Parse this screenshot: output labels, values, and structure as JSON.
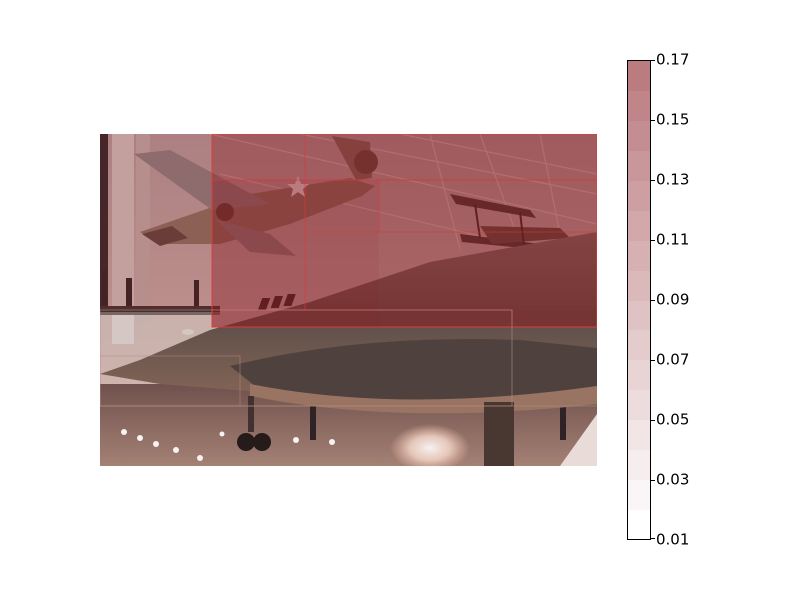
{
  "figure": {
    "photo_subject": "Aircraft museum hangar with suspended vintage planes and a dark reconnaissance jet on the floor, overlaid with a translucent red heatmap grid",
    "heatmap_color": "#8b1e22"
  },
  "colorbar": {
    "min": 0.01,
    "max": 0.17,
    "ticks": [
      "0.17",
      "0.15",
      "0.13",
      "0.11",
      "0.09",
      "0.07",
      "0.05",
      "0.03",
      "0.01"
    ],
    "low_color": "#ffffff",
    "high_color": "#bb7c80"
  }
}
